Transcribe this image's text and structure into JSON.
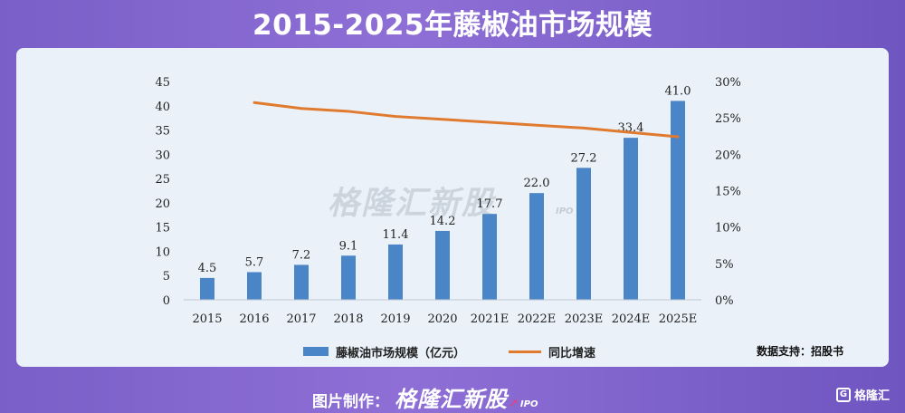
{
  "title": "2015-2025年藤椒油市场规模",
  "watermark": {
    "text": "格隆汇新股",
    "sub": "IPO"
  },
  "legend": {
    "bar_label": "藤椒油市场规模（亿元）",
    "line_label": "同比增速"
  },
  "source": "数据支持：招股书",
  "footer": {
    "credit_label": "图片制作：",
    "brand": "格隆汇新股",
    "brand_sub": "IPO",
    "logo_text": "格隆汇"
  },
  "colors": {
    "bar": "#4a86c7",
    "line": "#e07a2e",
    "background": "#eaf1f8"
  },
  "chart_data": {
    "type": "bar",
    "categories": [
      "2015",
      "2016",
      "2017",
      "2018",
      "2019",
      "2020",
      "2021E",
      "2022E",
      "2023E",
      "2024E",
      "2025E"
    ],
    "series": [
      {
        "name": "藤椒油市场规模（亿元）",
        "type": "bar",
        "axis": "left",
        "values": [
          4.5,
          5.7,
          7.2,
          9.1,
          11.4,
          14.2,
          17.7,
          22.0,
          27.2,
          33.4,
          41.0
        ],
        "labels": [
          "4.5",
          "5.7",
          "7.2",
          "9.1",
          "11.4",
          "14.2",
          "17.7",
          "22.0",
          "27.2",
          "33.4",
          "41.0"
        ]
      },
      {
        "name": "同比增速",
        "type": "line",
        "axis": "right",
        "values": [
          null,
          27.1,
          26.3,
          25.9,
          25.2,
          24.8,
          24.4,
          24.0,
          23.6,
          23.0,
          22.4
        ]
      }
    ],
    "y_left": {
      "min": 0,
      "max": 45,
      "ticks": [
        "0",
        "5",
        "10",
        "15",
        "20",
        "25",
        "30",
        "35",
        "40",
        "45"
      ]
    },
    "y_right": {
      "min": 0,
      "max": 30,
      "ticks": [
        "0%",
        "5%",
        "10%",
        "15%",
        "20%",
        "25%",
        "30%"
      ]
    },
    "grid": false,
    "legend_position": "bottom"
  }
}
